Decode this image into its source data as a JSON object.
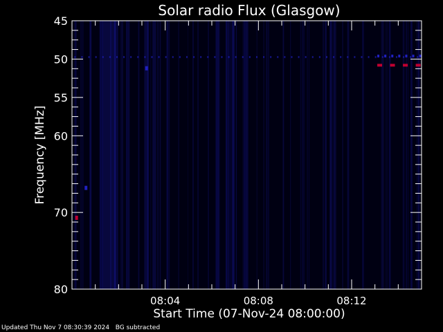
{
  "chart_data": {
    "type": "heatmap",
    "title": "Solar radio Flux (Glasgow)",
    "xlabel": "Start Time (07-Nov-24 08:00:00)",
    "ylabel": "Frequency [MHz]",
    "x_range": [
      "08:00",
      "08:15"
    ],
    "x_ticks": [
      "08:04",
      "08:08",
      "08:12"
    ],
    "y_range": [
      45,
      80
    ],
    "y_ticks": [
      45,
      50,
      55,
      60,
      70,
      80
    ],
    "y_inverted": true,
    "colors": {
      "background": "#000010",
      "low": "#0a0a50",
      "mid": "#2020c0",
      "high": "#c00030"
    },
    "features": [
      {
        "kind": "band",
        "x_min": [
          1.3,
          1.9
        ],
        "intensity": 0.5
      },
      {
        "kind": "band",
        "x_min": [
          2.1,
          2.2
        ],
        "intensity": 0.35
      },
      {
        "kind": "band",
        "x_min": [
          3.1,
          3.3
        ],
        "intensity": 0.45
      },
      {
        "kind": "band",
        "x_min": [
          6.9,
          7.0
        ],
        "intensity": 0.25
      },
      {
        "kind": "line",
        "freq": 49.6,
        "x_min": [
          0.1,
          15.0
        ],
        "intensity": 0.6
      },
      {
        "kind": "burst",
        "x_min": 0.2,
        "freq": 70.7,
        "intensity": 1.0
      },
      {
        "kind": "burst",
        "x_min": 0.6,
        "freq": 66.8,
        "intensity": 0.6
      },
      {
        "kind": "burst",
        "x_min": 3.2,
        "freq": 51.2,
        "intensity": 0.6
      },
      {
        "kind": "dashed",
        "freq": 50.8,
        "x_min": [
          13.1,
          15.0
        ],
        "intensity": 1.0
      }
    ]
  },
  "footer": {
    "updated": "Updated Thu Nov  7 08:30:39 2024",
    "note": "BG subtracted"
  }
}
